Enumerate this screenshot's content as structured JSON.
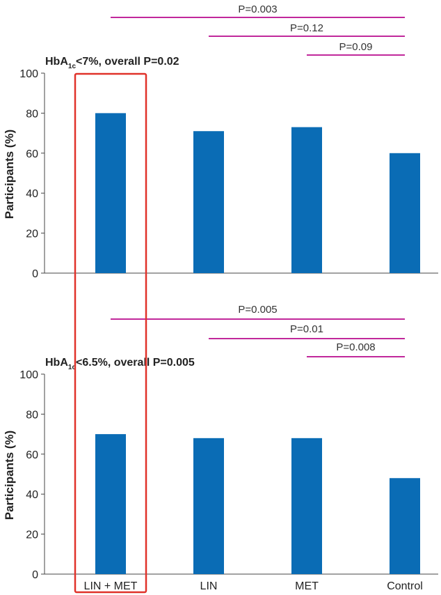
{
  "colors": {
    "bar": "#0a6cb5",
    "bracket": "#c1289b",
    "highlight_box": "#e0322a",
    "axis": "#444444"
  },
  "chart_data": [
    {
      "type": "bar",
      "title": {
        "prefix": "HbA",
        "subscript": "1c",
        "suffix": "<7%, overall P=0.02"
      },
      "categories": [
        "LIN + MET",
        "LIN",
        "MET",
        "Control"
      ],
      "series": [
        {
          "values": [
            80,
            71,
            73,
            60
          ]
        }
      ],
      "ylabel": "Participants (%)",
      "ylim": [
        0,
        100
      ],
      "yticks": [
        0,
        20,
        40,
        60,
        80,
        100
      ],
      "grid": false,
      "annotations": [
        {
          "text": "P=0.003",
          "from": "LIN + MET",
          "to": "Control"
        },
        {
          "text": "P=0.12",
          "from": "LIN",
          "to": "Control"
        },
        {
          "text": "P=0.09",
          "from": "MET",
          "to": "Control"
        }
      ]
    },
    {
      "type": "bar",
      "title": {
        "prefix": "HbA",
        "subscript": "1c",
        "suffix": "<6.5%, overall P=0.005"
      },
      "categories": [
        "LIN + MET",
        "LIN",
        "MET",
        "Control"
      ],
      "series": [
        {
          "values": [
            70,
            68,
            68,
            48
          ]
        }
      ],
      "ylabel": "Participants (%)",
      "ylim": [
        0,
        100
      ],
      "yticks": [
        0,
        20,
        40,
        60,
        80,
        100
      ],
      "grid": false,
      "annotations": [
        {
          "text": "P=0.005",
          "from": "LIN + MET",
          "to": "Control"
        },
        {
          "text": "P=0.01",
          "from": "LIN",
          "to": "Control"
        },
        {
          "text": "P=0.008",
          "from": "MET",
          "to": "Control"
        }
      ]
    }
  ],
  "highlighted_category": "LIN + MET"
}
